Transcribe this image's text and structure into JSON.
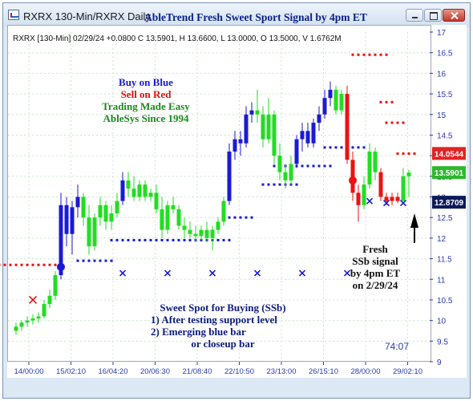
{
  "window": {
    "title": "RXRX 130-Min/RXRX Daily",
    "heading": "AbleTrend Fresh Sweet Sport Signal by 4pm ET"
  },
  "info_line": "RXRX [130-Min] 02/29/24 +0.0800 C 13.5901, H 13.6600, L 13.0000, O 13.5000, V 1.6762M",
  "legend": {
    "line1": "Buy on Blue",
    "line2": "Sell on Red",
    "line3": "Trading Made Easy",
    "line4": "AbleSys Since 1994"
  },
  "note_ssb": {
    "line1": "Sweet Spot for Buying (SSb)",
    "line2": "1) After testing support level",
    "line3": "2) Emerging blue bar",
    "line4": "or closeup bar"
  },
  "note_fresh": {
    "line1": "Fresh",
    "line2": "SSb signal",
    "line3": "by 4pm ET",
    "line4": "on 2/29/24"
  },
  "time_label": "74:07",
  "colors": {
    "blue": "#1a1ad6",
    "green": "#22dd22",
    "red": "#ee1111",
    "price_tag_red": "#e42222",
    "price_tag_green": "#2db82d",
    "price_tag_navy": "#0a1a5a"
  },
  "chart_data": {
    "type": "candlestick",
    "title": "AbleTrend Fresh Sweet Sport Signal by 4pm ET",
    "ylim": [
      9,
      17
    ],
    "y_ticks": [
      "9",
      "9.5",
      "10",
      "10.5",
      "11",
      "11.5",
      "12",
      "12.5",
      "13",
      "13.5",
      "14",
      "14.5",
      "15",
      "15.5",
      "16",
      "16.5",
      "17"
    ],
    "x_ticks": [
      "14/00:00",
      "15/02:10",
      "16/04:20",
      "20/06:30",
      "21/08:40",
      "22/10:50",
      "23/13:00",
      "26/15:10",
      "28/00:00",
      "29/02:10"
    ],
    "price_tags": [
      {
        "value": "14.0544",
        "color": "red"
      },
      {
        "value": "13.5901",
        "color": "green"
      },
      {
        "value": "12.8709",
        "color": "navy"
      }
    ],
    "bars": [
      {
        "o": 9.75,
        "h": 9.95,
        "l": 9.65,
        "c": 9.85,
        "color": "green"
      },
      {
        "o": 9.85,
        "h": 10.0,
        "l": 9.75,
        "c": 9.95,
        "color": "green"
      },
      {
        "o": 9.95,
        "h": 10.1,
        "l": 9.85,
        "c": 10.0,
        "color": "green"
      },
      {
        "o": 10.0,
        "h": 10.15,
        "l": 9.9,
        "c": 10.05,
        "color": "green"
      },
      {
        "o": 10.05,
        "h": 10.2,
        "l": 9.95,
        "c": 10.1,
        "color": "green"
      },
      {
        "o": 10.1,
        "h": 10.5,
        "l": 10.05,
        "c": 10.4,
        "color": "green"
      },
      {
        "o": 10.4,
        "h": 10.75,
        "l": 10.3,
        "c": 10.6,
        "color": "green"
      },
      {
        "o": 10.6,
        "h": 11.2,
        "l": 10.5,
        "c": 11.1,
        "color": "green"
      },
      {
        "o": 11.1,
        "h": 13.1,
        "l": 11.0,
        "c": 12.8,
        "color": "blue"
      },
      {
        "o": 12.8,
        "h": 13.0,
        "l": 11.8,
        "c": 12.1,
        "color": "blue"
      },
      {
        "o": 12.1,
        "h": 12.9,
        "l": 11.6,
        "c": 12.75,
        "color": "blue"
      },
      {
        "o": 12.75,
        "h": 13.3,
        "l": 12.5,
        "c": 13.0,
        "color": "blue"
      },
      {
        "o": 13.0,
        "h": 13.1,
        "l": 12.3,
        "c": 12.5,
        "color": "green"
      },
      {
        "o": 12.5,
        "h": 12.8,
        "l": 11.6,
        "c": 11.8,
        "color": "green"
      },
      {
        "o": 11.8,
        "h": 12.6,
        "l": 11.7,
        "c": 12.5,
        "color": "green"
      },
      {
        "o": 12.5,
        "h": 13.0,
        "l": 12.3,
        "c": 12.8,
        "color": "green"
      },
      {
        "o": 12.8,
        "h": 12.9,
        "l": 12.2,
        "c": 12.4,
        "color": "green"
      },
      {
        "o": 12.4,
        "h": 12.8,
        "l": 12.2,
        "c": 12.6,
        "color": "green"
      },
      {
        "o": 12.6,
        "h": 13.1,
        "l": 12.5,
        "c": 12.9,
        "color": "green"
      },
      {
        "o": 12.9,
        "h": 13.6,
        "l": 12.8,
        "c": 13.4,
        "color": "blue"
      },
      {
        "o": 13.4,
        "h": 13.6,
        "l": 13.0,
        "c": 13.2,
        "color": "green"
      },
      {
        "o": 13.2,
        "h": 13.5,
        "l": 12.9,
        "c": 13.0,
        "color": "green"
      },
      {
        "o": 13.0,
        "h": 13.4,
        "l": 12.9,
        "c": 13.3,
        "color": "green"
      },
      {
        "o": 13.3,
        "h": 13.4,
        "l": 12.9,
        "c": 13.0,
        "color": "green"
      },
      {
        "o": 13.0,
        "h": 13.2,
        "l": 12.9,
        "c": 13.1,
        "color": "green"
      },
      {
        "o": 13.1,
        "h": 13.3,
        "l": 12.6,
        "c": 12.7,
        "color": "green"
      },
      {
        "o": 12.7,
        "h": 13.0,
        "l": 12.0,
        "c": 12.2,
        "color": "green"
      },
      {
        "o": 12.2,
        "h": 12.9,
        "l": 12.1,
        "c": 12.8,
        "color": "green"
      },
      {
        "o": 12.8,
        "h": 13.0,
        "l": 12.6,
        "c": 12.7,
        "color": "green"
      },
      {
        "o": 12.7,
        "h": 12.8,
        "l": 12.2,
        "c": 12.3,
        "color": "green"
      },
      {
        "o": 12.3,
        "h": 12.5,
        "l": 12.0,
        "c": 12.2,
        "color": "green"
      },
      {
        "o": 12.2,
        "h": 12.4,
        "l": 12.0,
        "c": 12.1,
        "color": "green"
      },
      {
        "o": 12.1,
        "h": 12.3,
        "l": 11.9,
        "c": 12.05,
        "color": "green"
      },
      {
        "o": 12.05,
        "h": 12.3,
        "l": 11.95,
        "c": 12.2,
        "color": "green"
      },
      {
        "o": 12.2,
        "h": 12.4,
        "l": 11.9,
        "c": 12.0,
        "color": "green"
      },
      {
        "o": 12.0,
        "h": 12.3,
        "l": 11.7,
        "c": 12.2,
        "color": "green"
      },
      {
        "o": 12.2,
        "h": 12.5,
        "l": 12.1,
        "c": 12.4,
        "color": "green"
      },
      {
        "o": 12.4,
        "h": 13.0,
        "l": 12.3,
        "c": 12.9,
        "color": "green"
      },
      {
        "o": 12.9,
        "h": 14.3,
        "l": 12.8,
        "c": 14.1,
        "color": "blue"
      },
      {
        "o": 14.1,
        "h": 14.6,
        "l": 13.9,
        "c": 14.4,
        "color": "blue"
      },
      {
        "o": 14.4,
        "h": 14.6,
        "l": 14.0,
        "c": 14.3,
        "color": "blue"
      },
      {
        "o": 14.3,
        "h": 15.2,
        "l": 14.2,
        "c": 15.0,
        "color": "blue"
      },
      {
        "o": 15.0,
        "h": 15.3,
        "l": 14.8,
        "c": 15.1,
        "color": "blue"
      },
      {
        "o": 15.1,
        "h": 15.6,
        "l": 14.8,
        "c": 15.0,
        "color": "green"
      },
      {
        "o": 15.0,
        "h": 15.2,
        "l": 14.2,
        "c": 14.4,
        "color": "green"
      },
      {
        "o": 14.4,
        "h": 15.4,
        "l": 14.3,
        "c": 15.0,
        "color": "green"
      },
      {
        "o": 15.0,
        "h": 15.1,
        "l": 13.8,
        "c": 14.0,
        "color": "green"
      },
      {
        "o": 14.0,
        "h": 14.3,
        "l": 13.4,
        "c": 13.6,
        "color": "green"
      },
      {
        "o": 13.6,
        "h": 13.8,
        "l": 13.2,
        "c": 13.4,
        "color": "green"
      },
      {
        "o": 13.4,
        "h": 14.0,
        "l": 13.3,
        "c": 13.8,
        "color": "green"
      },
      {
        "o": 13.8,
        "h": 14.5,
        "l": 13.7,
        "c": 14.4,
        "color": "blue"
      },
      {
        "o": 14.4,
        "h": 14.8,
        "l": 14.1,
        "c": 14.6,
        "color": "blue"
      },
      {
        "o": 14.6,
        "h": 14.8,
        "l": 14.2,
        "c": 14.3,
        "color": "blue"
      },
      {
        "o": 14.3,
        "h": 14.9,
        "l": 14.2,
        "c": 14.8,
        "color": "blue"
      },
      {
        "o": 14.8,
        "h": 15.2,
        "l": 14.6,
        "c": 15.0,
        "color": "blue"
      },
      {
        "o": 15.0,
        "h": 15.6,
        "l": 14.9,
        "c": 15.4,
        "color": "blue"
      },
      {
        "o": 15.4,
        "h": 15.8,
        "l": 15.2,
        "c": 15.6,
        "color": "blue"
      },
      {
        "o": 15.6,
        "h": 15.7,
        "l": 15.0,
        "c": 15.1,
        "color": "green"
      },
      {
        "o": 15.1,
        "h": 15.6,
        "l": 15.0,
        "c": 15.5,
        "color": "green"
      },
      {
        "o": 15.5,
        "h": 15.7,
        "l": 13.8,
        "c": 13.9,
        "color": "red"
      },
      {
        "o": 13.9,
        "h": 14.1,
        "l": 12.9,
        "c": 13.1,
        "color": "red"
      },
      {
        "o": 13.1,
        "h": 13.3,
        "l": 12.4,
        "c": 12.8,
        "color": "red"
      },
      {
        "o": 12.8,
        "h": 13.5,
        "l": 12.7,
        "c": 13.3,
        "color": "green"
      },
      {
        "o": 13.3,
        "h": 14.3,
        "l": 13.2,
        "c": 14.1,
        "color": "green"
      },
      {
        "o": 14.1,
        "h": 14.2,
        "l": 13.4,
        "c": 13.6,
        "color": "green"
      },
      {
        "o": 13.6,
        "h": 13.7,
        "l": 12.9,
        "c": 13.0,
        "color": "red"
      },
      {
        "o": 13.0,
        "h": 13.1,
        "l": 12.8,
        "c": 12.9,
        "color": "red"
      },
      {
        "o": 12.9,
        "h": 13.1,
        "l": 12.8,
        "c": 13.0,
        "color": "red"
      },
      {
        "o": 13.0,
        "h": 13.1,
        "l": 12.85,
        "c": 12.9,
        "color": "red"
      },
      {
        "o": 12.9,
        "h": 13.7,
        "l": 12.9,
        "c": 13.5,
        "color": "green"
      },
      {
        "o": 13.5,
        "h": 13.66,
        "l": 13.0,
        "c": 13.59,
        "color": "green"
      }
    ],
    "stop_segments": [
      {
        "side": "sell",
        "y": 11.35,
        "from_bar": -3,
        "to_bar": 7
      },
      {
        "side": "buy",
        "y": 11.45,
        "from_bar": 11,
        "to_bar": 17
      },
      {
        "side": "buy",
        "y": 11.95,
        "from_bar": 17,
        "to_bar": 38
      },
      {
        "side": "buy",
        "y": 12.5,
        "from_bar": 38,
        "to_bar": 42
      },
      {
        "side": "buy",
        "y": 13.3,
        "from_bar": 44,
        "to_bar": 50
      },
      {
        "side": "buy",
        "y": 13.75,
        "from_bar": 46,
        "to_bar": 56
      },
      {
        "side": "buy",
        "y": 14.2,
        "from_bar": 55,
        "to_bar": 62
      },
      {
        "side": "sell",
        "y": 16.45,
        "from_bar": 60,
        "to_bar": 66
      },
      {
        "side": "sell",
        "y": 15.3,
        "from_bar": 65,
        "to_bar": 67
      },
      {
        "side": "sell",
        "y": 14.8,
        "from_bar": 66,
        "to_bar": 69
      },
      {
        "side": "sell",
        "y": 14.05,
        "from_bar": 68,
        "to_bar": 71
      }
    ],
    "signal_dots": [
      {
        "side": "buy",
        "bar": 8,
        "y": 11.3
      },
      {
        "side": "sell",
        "bar": 60,
        "y": 13.4
      }
    ],
    "x_markers": [
      {
        "side": "sell",
        "bar": 3,
        "y": 10.5
      },
      {
        "side": "buy",
        "bar": 19,
        "y": 11.15
      },
      {
        "side": "buy",
        "bar": 27,
        "y": 11.15
      },
      {
        "side": "buy",
        "bar": 35,
        "y": 11.15
      },
      {
        "side": "buy",
        "bar": 43,
        "y": 11.15
      },
      {
        "side": "buy",
        "bar": 51,
        "y": 11.15
      },
      {
        "side": "buy",
        "bar": 59,
        "y": 11.15
      },
      {
        "side": "buy",
        "bar": 63,
        "y": 12.9
      },
      {
        "side": "buy",
        "bar": 66,
        "y": 12.85
      },
      {
        "side": "buy",
        "bar": 69,
        "y": 12.85
      }
    ]
  }
}
